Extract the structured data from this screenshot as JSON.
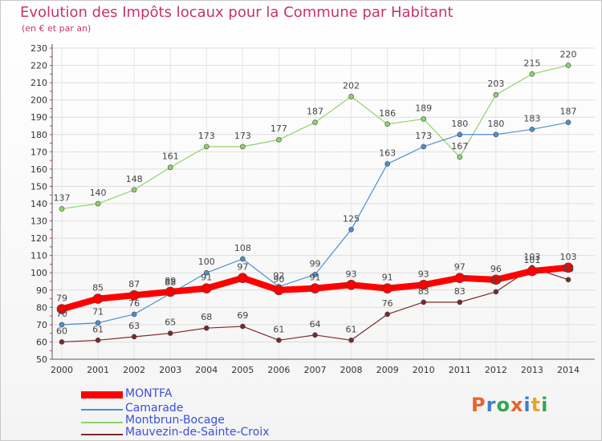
{
  "header": {
    "title": "Evolution des Impôts locaux pour la Commune par Habitant",
    "subtitle": "(en € et par an)"
  },
  "logo": {
    "letters": [
      "P",
      "r",
      "o",
      "x",
      "i",
      "t",
      "i"
    ],
    "colors": [
      "#e8642a",
      "#3b7fd0",
      "#2fa84f",
      "#e8642a",
      "#3b7fd0",
      "#e8a22a",
      "#2fa84f"
    ]
  },
  "chart_data": {
    "type": "line",
    "x": [
      "2000",
      "2001",
      "2002",
      "2003",
      "2004",
      "2005",
      "2006",
      "2007",
      "2008",
      "2009",
      "2010",
      "2011",
      "2012",
      "2013",
      "2014"
    ],
    "ylim": [
      50,
      230
    ],
    "yticks": [
      50,
      60,
      70,
      80,
      90,
      100,
      110,
      120,
      130,
      140,
      150,
      160,
      170,
      180,
      190,
      200,
      210,
      220,
      230
    ],
    "grid": true,
    "legend_position": "bottom-left",
    "series": [
      {
        "name": "MONTFA",
        "color": "#ff0000",
        "values": [
          79,
          85,
          87,
          89,
          91,
          97,
          90,
          91,
          93,
          91,
          93,
          97,
          96,
          101,
          103
        ]
      },
      {
        "name": "Camarade",
        "color": "#4d8fd0",
        "values": [
          70,
          71,
          76,
          88,
          100,
          108,
          92,
          99,
          125,
          163,
          173,
          180,
          180,
          183,
          187
        ]
      },
      {
        "name": "Montbrun-Bocage",
        "color": "#8fd36a",
        "values": [
          137,
          140,
          148,
          161,
          173,
          173,
          177,
          187,
          202,
          186,
          189,
          167,
          203,
          215,
          220
        ]
      },
      {
        "name": "Mauvezin-de-Sainte-Croix",
        "color": "#7a2a2a",
        "values": [
          60,
          61,
          63,
          65,
          68,
          69,
          61,
          64,
          61,
          76,
          83,
          83,
          89,
          103,
          96
        ]
      }
    ],
    "data_labels": [
      [
        79,
        85,
        87,
        89,
        91,
        97,
        90,
        91,
        93,
        91,
        93,
        97,
        96,
        101,
        103
      ],
      [
        70,
        71,
        76,
        88,
        100,
        108,
        92,
        99,
        125,
        163,
        173,
        180,
        180,
        183,
        187
      ],
      [
        137,
        140,
        148,
        161,
        173,
        173,
        177,
        187,
        202,
        186,
        189,
        167,
        203,
        215,
        220
      ],
      [
        60,
        61,
        63,
        65,
        68,
        69,
        61,
        64,
        61,
        76,
        83,
        83,
        89,
        103,
        96
      ]
    ]
  }
}
